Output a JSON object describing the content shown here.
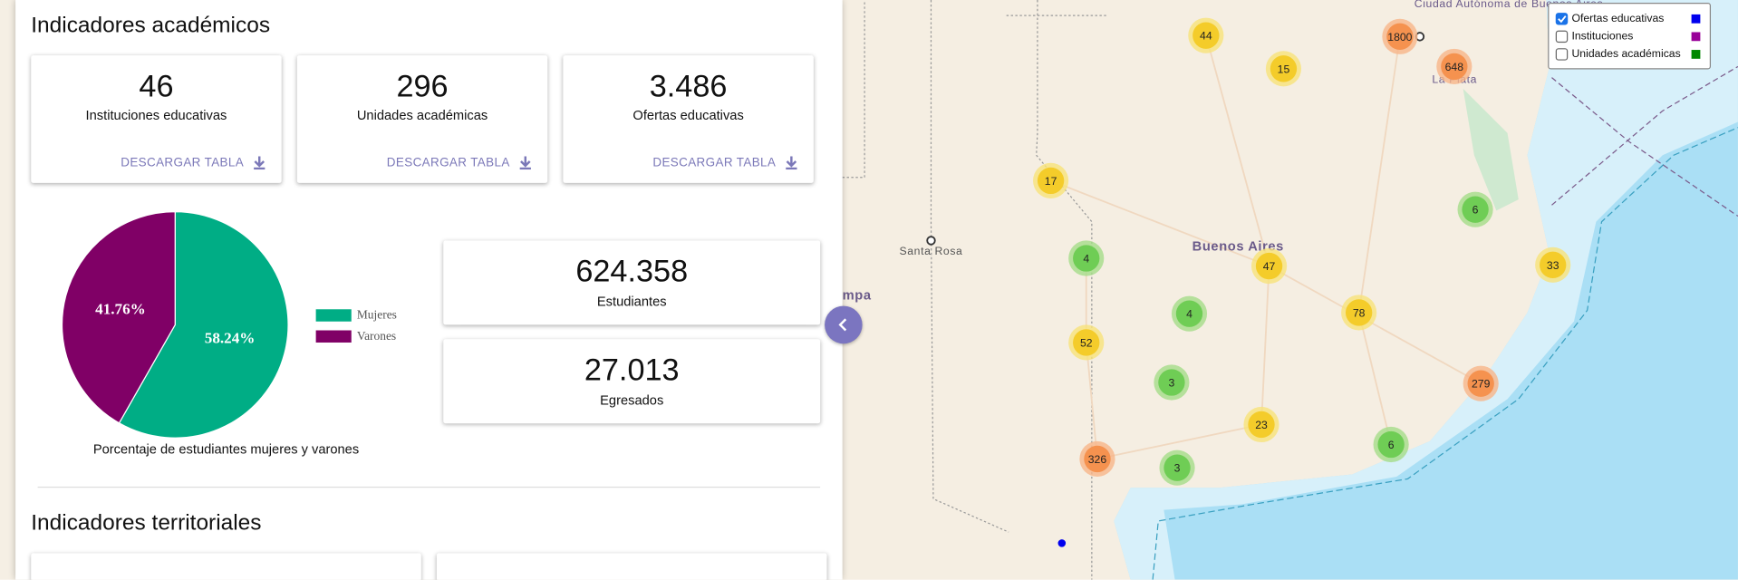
{
  "academic": {
    "title": "Indicadores académicos",
    "cards": [
      {
        "value": "46",
        "label": "Instituciones educativas",
        "button": "DESCARGAR TABLA"
      },
      {
        "value": "296",
        "label": "Unidades académicas",
        "button": "DESCARGAR TABLA"
      },
      {
        "value": "3.486",
        "label": "Ofertas educativas",
        "button": "DESCARGAR TABLA"
      }
    ],
    "students": [
      {
        "value": "624.358",
        "label": "Estudiantes"
      },
      {
        "value": "27.013",
        "label": "Egresados"
      }
    ]
  },
  "pie": {
    "type": "pie",
    "caption": "Porcentaje de estudiantes mujeres y varones",
    "categories": [
      "Mujeres",
      "Varones"
    ],
    "values": [
      58.24,
      41.76
    ],
    "value_labels": [
      "58.24%",
      "41.76%"
    ],
    "colors": [
      "#00ad85",
      "#800066"
    ]
  },
  "territorial": {
    "title": "Indicadores territoriales"
  },
  "map": {
    "places": [
      "Ciudad Autónoma de Buenos Aires",
      "La Plata",
      "Santa Rosa",
      "Buenos Aires",
      "mpa"
    ],
    "legend": [
      {
        "label": "Ofertas educativas",
        "checked": true,
        "color": "#0000ee"
      },
      {
        "label": "Instituciones",
        "checked": false,
        "color": "#990099"
      },
      {
        "label": "Unidades académicas",
        "checked": false,
        "color": "#008800"
      }
    ],
    "clusters": [
      {
        "count": "44",
        "color": "yellow"
      },
      {
        "count": "15",
        "color": "yellow"
      },
      {
        "count": "1800",
        "color": "orange"
      },
      {
        "count": "648",
        "color": "orange"
      },
      {
        "count": "17",
        "color": "yellow"
      },
      {
        "count": "4",
        "color": "green"
      },
      {
        "count": "47",
        "color": "yellow"
      },
      {
        "count": "6",
        "color": "green"
      },
      {
        "count": "33",
        "color": "yellow"
      },
      {
        "count": "4",
        "color": "green"
      },
      {
        "count": "78",
        "color": "yellow"
      },
      {
        "count": "52",
        "color": "yellow"
      },
      {
        "count": "3",
        "color": "green"
      },
      {
        "count": "279",
        "color": "orange"
      },
      {
        "count": "23",
        "color": "yellow"
      },
      {
        "count": "326",
        "color": "orange"
      },
      {
        "count": "3",
        "color": "green"
      },
      {
        "count": "6",
        "color": "green"
      }
    ]
  }
}
